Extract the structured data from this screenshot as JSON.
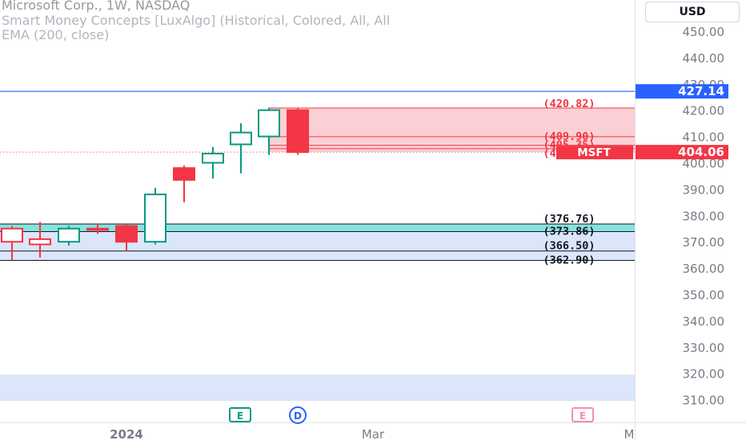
{
  "header": {
    "symbol_line": "Microsoft Corp., 1W, NASDAQ",
    "indicator_line": "Smart Money Concepts [LuxAlgo] (Historical, Colored, All, All",
    "ema_line": "EMA (200, close)",
    "currency_button": "USD"
  },
  "price_tags": {
    "blue_line": {
      "value": "427.14",
      "color": "#2962ff"
    },
    "last_price": {
      "symbol": "MSFT",
      "value": "404.06",
      "color": "#f23645"
    }
  },
  "zone_labels": {
    "supply_top": "(420.82)",
    "supply_mid1": "(409.90)",
    "supply_mid2": "(405.35)",
    "supply_mid3": "(406.65)",
    "demand_top": "(376.76)",
    "demand_bottom": "(373.86)",
    "level_a": "(366.50)",
    "level_b": "(362.90)"
  },
  "event_markers": [
    "E",
    "D",
    "E"
  ],
  "colors": {
    "up": "#089981",
    "down": "#f23645",
    "supply_fill": "#fbd0d4",
    "demand_fill": "#dbe6fb",
    "teal_fill": "#88e2e0",
    "axis_text": "#787b86"
  },
  "chart_data": {
    "type": "candlestick",
    "title": "Microsoft Corp., 1W, NASDAQ",
    "ylim": [
      305,
      460
    ],
    "y_ticks": [
      310,
      320,
      330,
      340,
      350,
      360,
      370,
      380,
      390,
      400,
      410,
      420,
      430,
      440,
      450
    ],
    "y_tick_labels": [
      "310.00",
      "320.00",
      "330.00",
      "340.00",
      "350.00",
      "360.00",
      "370.00",
      "380.00",
      "390.00",
      "400.00",
      "410.00",
      "420.00",
      "430.00",
      "440.00",
      "450.00"
    ],
    "x_tick_labels": [
      "2024",
      "Mar",
      "M"
    ],
    "candles": [
      {
        "o": 375.0,
        "h": 376.0,
        "l": 362.9,
        "c": 370.0
      },
      {
        "o": 371.0,
        "h": 377.5,
        "l": 364.0,
        "c": 369.0
      },
      {
        "o": 370.0,
        "h": 376.0,
        "l": 368.5,
        "c": 375.0
      },
      {
        "o": 375.0,
        "h": 376.8,
        "l": 373.0,
        "c": 374.5
      },
      {
        "o": 376.0,
        "h": 376.5,
        "l": 366.5,
        "c": 370.0
      },
      {
        "o": 370.0,
        "h": 390.5,
        "l": 369.0,
        "c": 388.0
      },
      {
        "o": 398.0,
        "h": 399.0,
        "l": 385.0,
        "c": 393.5
      },
      {
        "o": 400.0,
        "h": 406.0,
        "l": 394.0,
        "c": 403.5
      },
      {
        "o": 407.0,
        "h": 415.0,
        "l": 396.0,
        "c": 411.5
      },
      {
        "o": 410.0,
        "h": 420.82,
        "l": 403.0,
        "c": 420.0
      },
      {
        "o": 420.0,
        "h": 420.82,
        "l": 403.0,
        "c": 404.06
      }
    ],
    "levels": [
      420.82,
      409.9,
      406.65,
      405.35,
      376.76,
      373.86,
      366.5,
      362.9
    ],
    "blue_line": 427.14,
    "last_price": 404.06
  }
}
